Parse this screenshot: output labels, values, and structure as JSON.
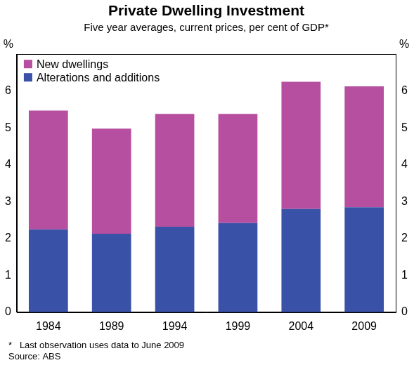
{
  "chart_data": {
    "type": "bar",
    "title": "Private Dwelling Investment",
    "subtitle": "Five year averages, current prices, per cent of GDP*",
    "y_label": "%",
    "y2_label": "%",
    "categories": [
      "1984",
      "1989",
      "1994",
      "1999",
      "2004",
      "2009"
    ],
    "series": [
      {
        "name": "Alterations and additions",
        "color": "#3a51a8",
        "values": [
          2.25,
          2.13,
          2.32,
          2.42,
          2.8,
          2.85
        ]
      },
      {
        "name": "New dwellings",
        "color": "#b74fa0",
        "values": [
          3.22,
          2.85,
          3.06,
          2.96,
          3.45,
          3.28
        ]
      }
    ],
    "stacked": true,
    "ylim": [
      0,
      7
    ],
    "yticks": [
      0,
      1,
      2,
      3,
      4,
      5,
      6
    ],
    "y2lim": [
      0,
      7
    ],
    "y2ticks": [
      0,
      1,
      2,
      3,
      4,
      5,
      6
    ],
    "grid": false,
    "legend": "upper left",
    "notes": [
      "*   Last observation uses data to June 2009",
      "Source: ABS"
    ]
  }
}
